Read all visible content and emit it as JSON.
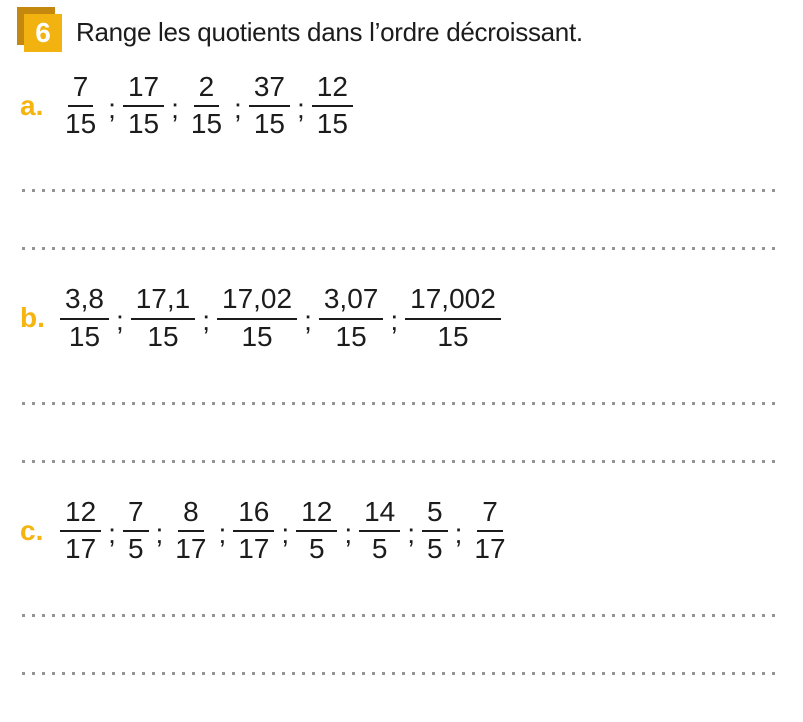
{
  "header": {
    "number": "6",
    "title": "Range les quotients dans l’ordre décroissant."
  },
  "colors": {
    "accent": "#F5B40F",
    "badge_front": "#F2B310",
    "badge_shadow": "#C5880E",
    "text": "#1C1C1C",
    "dots": "#949494"
  },
  "separator": ";",
  "parts": [
    {
      "id": "a",
      "label": "a.",
      "answer_lines": 2,
      "fractions": [
        {
          "n": "7",
          "d": "15"
        },
        {
          "n": "17",
          "d": "15"
        },
        {
          "n": "2",
          "d": "15"
        },
        {
          "n": "37",
          "d": "15"
        },
        {
          "n": "12",
          "d": "15"
        }
      ]
    },
    {
      "id": "b",
      "label": "b.",
      "answer_lines": 2,
      "fractions": [
        {
          "n": "3,8",
          "d": "15"
        },
        {
          "n": "17,1",
          "d": "15"
        },
        {
          "n": "17,02",
          "d": "15"
        },
        {
          "n": "3,07",
          "d": "15"
        },
        {
          "n": "17,002",
          "d": "15"
        }
      ]
    },
    {
      "id": "c",
      "label": "c.",
      "answer_lines": 2,
      "fractions": [
        {
          "n": "12",
          "d": "17"
        },
        {
          "n": "7",
          "d": "5"
        },
        {
          "n": "8",
          "d": "17"
        },
        {
          "n": "16",
          "d": "17"
        },
        {
          "n": "12",
          "d": "5"
        },
        {
          "n": "14",
          "d": "5"
        },
        {
          "n": "5",
          "d": "5"
        },
        {
          "n": "7",
          "d": "17"
        }
      ]
    }
  ]
}
